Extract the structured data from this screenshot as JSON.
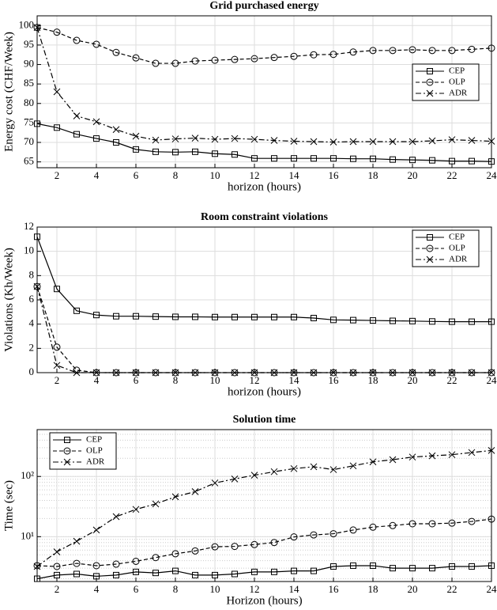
{
  "chart_data": [
    {
      "type": "line",
      "title": "Grid purchased energy",
      "xlabel": "horizon (hours)",
      "ylabel": "Energy cost (CHF/Week)",
      "x": [
        1,
        2,
        3,
        4,
        5,
        6,
        7,
        8,
        9,
        10,
        11,
        12,
        13,
        14,
        15,
        16,
        17,
        18,
        19,
        20,
        21,
        22,
        23,
        24
      ],
      "xlim": [
        1,
        24
      ],
      "xticks": [
        2,
        4,
        6,
        8,
        10,
        12,
        14,
        16,
        18,
        20,
        22,
        24
      ],
      "ylim": [
        63.5,
        102.5
      ],
      "yticks": [
        65,
        70,
        75,
        80,
        85,
        90,
        95,
        100
      ],
      "yscale": "linear",
      "grid": true,
      "legend": "right",
      "series": [
        {
          "name": "CEP",
          "color": "#000000",
          "marker": "square",
          "linestyle": "solid",
          "values": [
            74.8,
            73.8,
            72.1,
            71.0,
            70.0,
            68.2,
            67.6,
            67.5,
            67.6,
            67.1,
            66.9,
            65.9,
            65.9,
            65.9,
            65.9,
            65.9,
            65.8,
            65.8,
            65.6,
            65.5,
            65.4,
            65.2,
            65.2,
            65.1
          ]
        },
        {
          "name": "OLP",
          "color": "#000000",
          "marker": "circle",
          "linestyle": "dashed",
          "values": [
            99.5,
            98.3,
            96.2,
            95.2,
            93.1,
            91.7,
            90.3,
            90.3,
            90.9,
            91.1,
            91.3,
            91.5,
            91.8,
            92.1,
            92.5,
            92.6,
            93.2,
            93.6,
            93.6,
            93.8,
            93.6,
            93.6,
            93.9,
            94.2
          ]
        },
        {
          "name": "ADR",
          "color": "#000000",
          "marker": "x",
          "linestyle": "dashdot",
          "values": [
            99.5,
            83.0,
            76.8,
            75.3,
            73.3,
            71.6,
            70.6,
            70.9,
            71.1,
            70.8,
            71.0,
            70.8,
            70.5,
            70.3,
            70.2,
            70.1,
            70.2,
            70.2,
            70.2,
            70.2,
            70.4,
            70.7,
            70.5,
            70.3
          ]
        }
      ]
    },
    {
      "type": "line",
      "title": "Room constraint violations",
      "xlabel": "horizon (hours)",
      "ylabel": "Violations (Kh/Week)",
      "x": [
        1,
        2,
        3,
        4,
        5,
        6,
        7,
        8,
        9,
        10,
        11,
        12,
        13,
        14,
        15,
        16,
        17,
        18,
        19,
        20,
        21,
        22,
        23,
        24
      ],
      "xlim": [
        1,
        24
      ],
      "xticks": [
        2,
        4,
        6,
        8,
        10,
        12,
        14,
        16,
        18,
        20,
        22,
        24
      ],
      "ylim": [
        0,
        12
      ],
      "yticks": [
        0,
        2,
        4,
        6,
        8,
        10,
        12
      ],
      "yscale": "linear",
      "grid": true,
      "legend": "upper right",
      "series": [
        {
          "name": "CEP",
          "color": "#000000",
          "marker": "square",
          "linestyle": "solid",
          "values": [
            11.2,
            6.9,
            5.1,
            4.75,
            4.65,
            4.65,
            4.62,
            4.6,
            4.6,
            4.58,
            4.58,
            4.58,
            4.58,
            4.58,
            4.5,
            4.35,
            4.33,
            4.3,
            4.27,
            4.25,
            4.22,
            4.2,
            4.2,
            4.2
          ]
        },
        {
          "name": "OLP",
          "color": "#000000",
          "marker": "circle",
          "linestyle": "dashed",
          "values": [
            7.1,
            2.1,
            0.2,
            0,
            0,
            0,
            0,
            0,
            0,
            0,
            0,
            0,
            0,
            0,
            0,
            0,
            0,
            0,
            0,
            0,
            0,
            0,
            0,
            0
          ]
        },
        {
          "name": "ADR",
          "color": "#000000",
          "marker": "x",
          "linestyle": "dashdot",
          "values": [
            7.1,
            0.6,
            0,
            0,
            0,
            0,
            0,
            0,
            0,
            0,
            0,
            0,
            0,
            0,
            0,
            0,
            0,
            0,
            0,
            0,
            0,
            0,
            0,
            0
          ]
        }
      ]
    },
    {
      "type": "line",
      "title": "Solution time",
      "xlabel": "Horizon (hours)",
      "ylabel": "Time (sec)",
      "x": [
        1,
        2,
        3,
        4,
        5,
        6,
        7,
        8,
        9,
        10,
        11,
        12,
        13,
        14,
        15,
        16,
        17,
        18,
        19,
        20,
        21,
        22,
        23,
        24
      ],
      "xlim": [
        1,
        24
      ],
      "xticks": [
        2,
        4,
        6,
        8,
        10,
        12,
        14,
        16,
        18,
        20,
        22,
        24
      ],
      "ylim": [
        1.8,
        600
      ],
      "yticks": [
        {
          "value": 10,
          "label": "10¹"
        },
        {
          "value": 100,
          "label": "10²"
        }
      ],
      "yscale": "log",
      "grid": true,
      "legend": "upper left",
      "series": [
        {
          "name": "CEP",
          "color": "#000000",
          "marker": "square",
          "linestyle": "solid",
          "values": [
            2.0,
            2.3,
            2.4,
            2.2,
            2.3,
            2.6,
            2.5,
            2.7,
            2.3,
            2.3,
            2.4,
            2.6,
            2.6,
            2.7,
            2.7,
            3.2,
            3.3,
            3.3,
            3.0,
            3.0,
            3.0,
            3.2,
            3.2,
            3.3
          ]
        },
        {
          "name": "OLP",
          "color": "#000000",
          "marker": "circle",
          "linestyle": "dashed",
          "values": [
            3.3,
            3.2,
            3.6,
            3.3,
            3.5,
            3.9,
            4.5,
            5.2,
            5.8,
            6.8,
            6.9,
            7.4,
            8.0,
            9.9,
            10.7,
            11.2,
            12.9,
            14.4,
            15.3,
            16.4,
            16.4,
            16.8,
            17.9,
            19.6
          ]
        },
        {
          "name": "ADR",
          "color": "#000000",
          "marker": "x",
          "linestyle": "dashdot",
          "values": [
            3.2,
            5.6,
            8.4,
            12.9,
            21.5,
            28.4,
            35,
            46,
            56,
            78,
            91,
            105,
            120,
            135,
            145,
            130,
            150,
            175,
            190,
            210,
            220,
            230,
            250,
            270
          ]
        }
      ]
    }
  ]
}
